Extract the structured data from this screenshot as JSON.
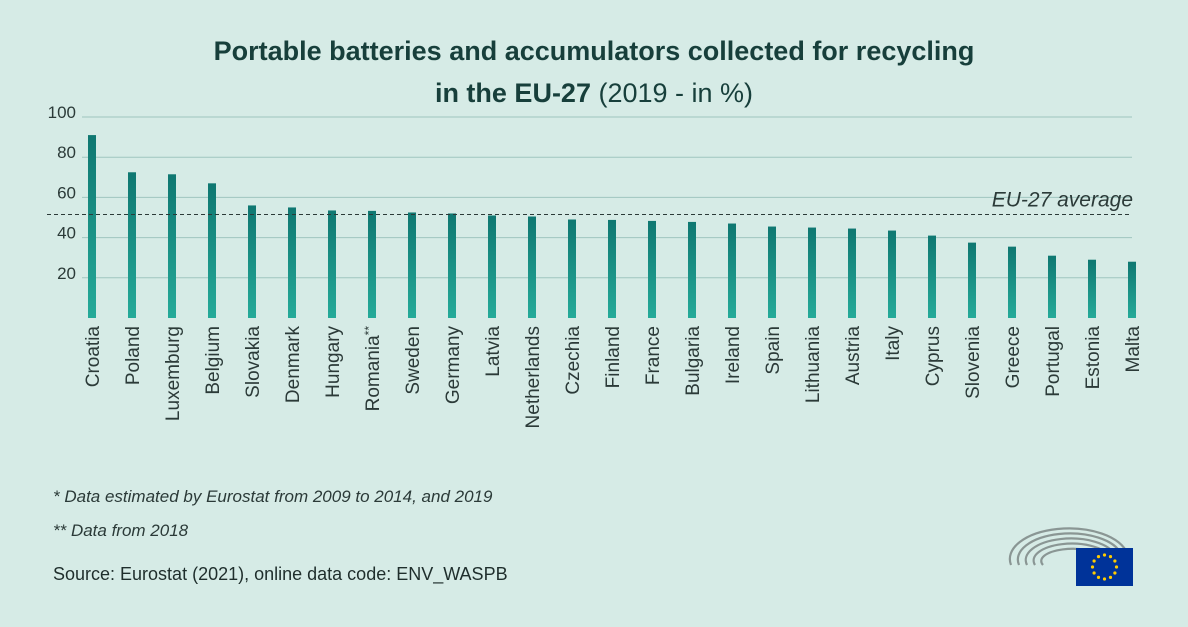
{
  "header": {
    "title_line1": "Portable batteries and accumulators collected for recycling",
    "title_line2_bold": "in the EU-27",
    "title_line2_normal": "(2019 - in %)"
  },
  "chart_data": {
    "type": "bar",
    "title": "Portable batteries and accumulators collected for recycling in the EU-27 (2019 - in %)",
    "xlabel": "",
    "ylabel": "",
    "ylim": [
      0,
      100
    ],
    "yticks": [
      20,
      40,
      60,
      80,
      100
    ],
    "grid": true,
    "categories": [
      "Croatia",
      "Poland",
      "Luxemburg",
      "Belgium",
      "Slovakia",
      "Denmark",
      "Hungary",
      "Romania **",
      "Sweden",
      "Germany",
      "Latvia",
      "Netherlands",
      "Czechia",
      "Finland",
      "France",
      "Bulgaria",
      "Ireland",
      "Spain",
      "Lithuania",
      "Austria",
      "Italy",
      "Cyprus",
      "Slovenia",
      "Greece",
      "Portugal",
      "Estonia",
      "Malta"
    ],
    "values": [
      91,
      72.5,
      71.5,
      67,
      56,
      55,
      53.5,
      53.3,
      52.5,
      52,
      51,
      50.5,
      49,
      48.8,
      48.3,
      47.8,
      47,
      45.5,
      45,
      44.5,
      43.5,
      41,
      37.5,
      35.5,
      31,
      29,
      28
    ],
    "reference_line": {
      "label": "EU-27 average",
      "value": 51.5
    },
    "colors": {
      "bar_top": "#0f7771",
      "bar_bottom": "#25aa99",
      "avg_line": "#2b3a38",
      "grid": "#9fc6bf"
    }
  },
  "footer": {
    "note1": "* Data estimated by Eurostat from 2009 to 2014, and 2019",
    "note2": "** Data from 2018",
    "source": "Source: Eurostat (2021), online data code: ENV_WASPB"
  },
  "logo": {
    "icon": "european-parliament-logo-icon",
    "flag_color": "#003399",
    "star_color": "#ffcc00"
  }
}
